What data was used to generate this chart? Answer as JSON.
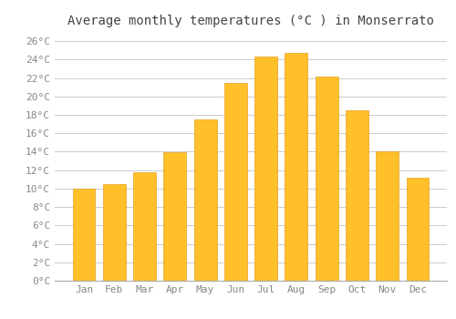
{
  "title": "Average monthly temperatures (°C ) in Monserrato",
  "months": [
    "Jan",
    "Feb",
    "Mar",
    "Apr",
    "May",
    "Jun",
    "Jul",
    "Aug",
    "Sep",
    "Oct",
    "Nov",
    "Dec"
  ],
  "values": [
    10.0,
    10.5,
    11.8,
    13.9,
    17.5,
    21.5,
    24.3,
    24.7,
    22.2,
    18.5,
    14.0,
    11.2
  ],
  "bar_color": "#FFC02A",
  "bar_edge_color": "#E8A020",
  "background_color": "#FFFFFF",
  "grid_color": "#CCCCCC",
  "ylim": [
    0,
    27
  ],
  "yticks": [
    0,
    2,
    4,
    6,
    8,
    10,
    12,
    14,
    16,
    18,
    20,
    22,
    24,
    26
  ],
  "ytick_labels": [
    "0°C",
    "2°C",
    "4°C",
    "6°C",
    "8°C",
    "10°C",
    "12°C",
    "14°C",
    "16°C",
    "18°C",
    "20°C",
    "22°C",
    "24°C",
    "26°C"
  ],
  "title_fontsize": 10,
  "tick_fontsize": 8,
  "font_family": "monospace",
  "tick_color": "#888888",
  "title_color": "#444444"
}
